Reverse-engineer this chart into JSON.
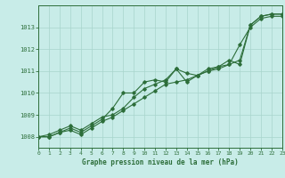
{
  "xlabel": "Graphe pression niveau de la mer (hPa)",
  "bg_color": "#c8ece8",
  "grid_color": "#a8d4cc",
  "line_color": "#2d6e3a",
  "xlim": [
    0,
    23
  ],
  "ylim": [
    1007.5,
    1014.0
  ],
  "yticks": [
    1008,
    1009,
    1010,
    1011,
    1012,
    1013
  ],
  "xticks": [
    0,
    1,
    2,
    3,
    4,
    5,
    6,
    7,
    8,
    9,
    10,
    11,
    12,
    13,
    14,
    15,
    16,
    17,
    18,
    19,
    20,
    21,
    22,
    23
  ],
  "series": [
    [
      1008.0,
      1008.0,
      1008.2,
      1008.4,
      1008.2,
      1008.5,
      1008.8,
      1009.3,
      1010.0,
      1010.0,
      1010.5,
      1010.6,
      1010.5,
      1011.1,
      1010.5,
      1010.8,
      1011.0,
      1011.1,
      1011.3,
      1011.5,
      1013.1,
      1013.5,
      1013.6,
      1013.6
    ],
    [
      1008.0,
      1008.0,
      1008.2,
      1008.3,
      1008.1,
      1008.4,
      1008.7,
      1008.9,
      1009.2,
      1009.5,
      1009.8,
      1010.1,
      1010.4,
      1010.5,
      1010.6,
      1010.8,
      1011.0,
      1011.2,
      1011.3,
      1012.2,
      1013.0,
      1013.4,
      1013.5,
      1013.5
    ],
    [
      1008.0,
      1008.1,
      1008.3,
      1008.5,
      1008.3,
      1008.6,
      1008.9,
      1009.0,
      1009.3,
      1009.8,
      1010.2,
      1010.4,
      1010.6,
      1011.1,
      1010.9,
      1010.8,
      1011.1,
      1011.2,
      1011.5,
      1011.3,
      1013.1,
      1013.5,
      1013.6,
      1013.6
    ]
  ]
}
